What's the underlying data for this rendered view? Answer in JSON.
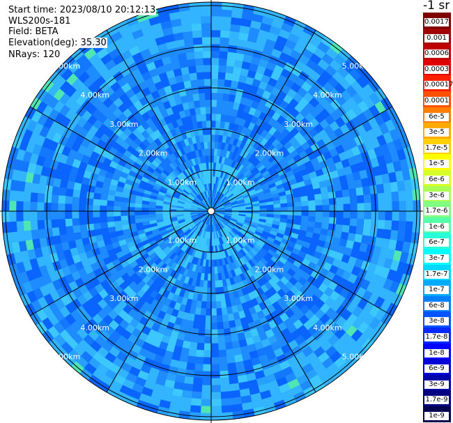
{
  "info": {
    "start_time": "Start time: 2023/08/10 20:12:13",
    "instrument": "WLS200s-181",
    "field": "Field: BETA",
    "elevation": "Elevation(deg): 35.30",
    "nrays": "NRays: 120"
  },
  "range_rings": [
    "1.00km",
    "2.00km",
    "3.00km",
    "4.00km",
    "5.00km"
  ],
  "colorbar": {
    "unit": "-1 sr",
    "labels": [
      "0.0017",
      "0.001",
      "0.0006",
      "0.0003",
      "0.00017",
      "0.0001",
      "6e-5",
      "3e-5",
      "1.7e-5",
      "1e-5",
      "6e-6",
      "3e-6",
      "1.7e-6",
      "1e-6",
      "6e-7",
      "3e-7",
      "1.7e-7",
      "1e-7",
      "6e-8",
      "3e-8",
      "1.7e-8",
      "1e-8",
      "6e-9",
      "3e-9",
      "1.7e-9",
      "1e-9"
    ],
    "colors": [
      "#800000",
      "#a00000",
      "#c00000",
      "#e00000",
      "#ff2000",
      "#ff5000",
      "#ff8000",
      "#ffaa00",
      "#ffd000",
      "#ffff00",
      "#d8ff28",
      "#aaff55",
      "#80ff80",
      "#55ffaa",
      "#28ffd8",
      "#00ffff",
      "#00d8ff",
      "#00aaff",
      "#0080ff",
      "#0055ff",
      "#0028ff",
      "#0000ff",
      "#0000d8",
      "#0000aa",
      "#000080",
      "#000050"
    ]
  }
}
